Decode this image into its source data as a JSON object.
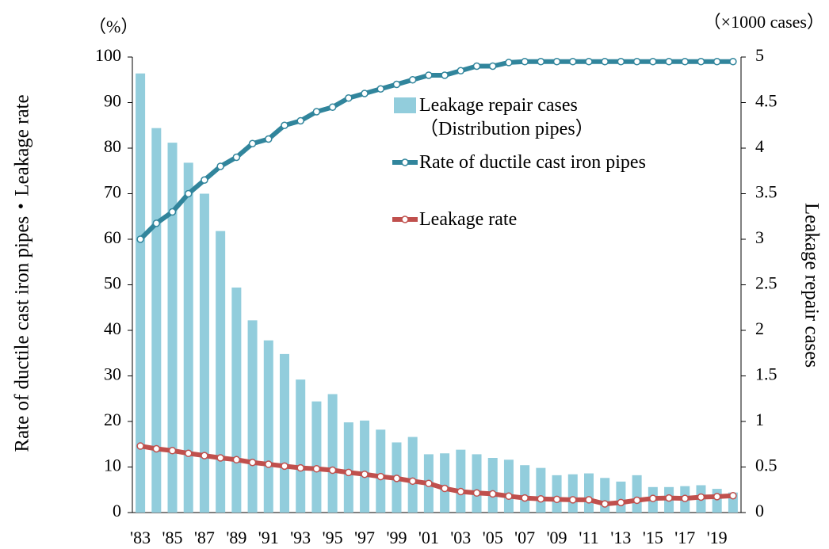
{
  "chart_data": {
    "type": "bar-line",
    "y_unit_label": "（%）",
    "y2_unit_label": "（×1000 cases）",
    "ylabel": "Rate of ductile cast iron pipes・Leakage rate",
    "y2label": "Leakage repair cases",
    "categories": [
      "'83",
      null,
      "'85",
      null,
      "'87",
      null,
      "'89",
      null,
      "'91",
      null,
      "'93",
      null,
      "'95",
      null,
      "'97",
      null,
      "'99",
      null,
      "'01",
      null,
      "'03",
      null,
      "'05",
      null,
      "'07",
      null,
      "'09",
      null,
      "'11",
      null,
      "'13",
      null,
      "'15",
      null,
      "'17",
      null,
      "'19",
      null
    ],
    "series": [
      {
        "name": "Leakage repair cases\n（Distribution pipes）",
        "type": "bar",
        "axis": "y2",
        "color": "#92cddc",
        "values": [
          4.82,
          4.22,
          4.06,
          3.84,
          3.5,
          3.09,
          2.47,
          2.11,
          1.89,
          1.74,
          1.46,
          1.22,
          1.3,
          0.99,
          1.01,
          0.91,
          0.77,
          0.83,
          0.64,
          0.65,
          0.69,
          0.64,
          0.6,
          0.58,
          0.52,
          0.49,
          0.41,
          0.42,
          0.43,
          0.38,
          0.34,
          0.41,
          0.28,
          0.28,
          0.29,
          0.3,
          0.26,
          0.22
        ]
      },
      {
        "name": "Rate of ductile cast iron pipes",
        "type": "line",
        "axis": "y",
        "color": "#31859c",
        "values": [
          60,
          63.5,
          66,
          70,
          73,
          76,
          78,
          81,
          82,
          85,
          86,
          88,
          89,
          91,
          92,
          93,
          94,
          95,
          96,
          96,
          97,
          98,
          98,
          98.8,
          99,
          99,
          99,
          99,
          99,
          99,
          99,
          99,
          99,
          99,
          99,
          99,
          99,
          99
        ]
      },
      {
        "name": "Leakage rate",
        "type": "line",
        "axis": "y",
        "color": "#c0504d",
        "values": [
          14.6,
          14,
          13.6,
          13,
          12.5,
          12,
          11.6,
          11,
          10.6,
          10.2,
          9.8,
          9.6,
          9.3,
          8.8,
          8.4,
          7.9,
          7.5,
          6.9,
          6.4,
          5.3,
          4.6,
          4.3,
          4.1,
          3.6,
          3.2,
          3,
          2.9,
          2.8,
          2.8,
          1.9,
          2.2,
          2.7,
          3.1,
          3.2,
          3.1,
          3.4,
          3.5,
          3.7
        ]
      }
    ],
    "ylim": [
      0,
      100
    ],
    "yticks": [
      0,
      10,
      20,
      30,
      40,
      50,
      60,
      70,
      80,
      90,
      100
    ],
    "y2lim": [
      0,
      5
    ],
    "y2ticks": [
      0,
      0.5,
      1,
      1.5,
      2,
      2.5,
      3,
      3.5,
      4,
      4.5,
      5
    ]
  }
}
